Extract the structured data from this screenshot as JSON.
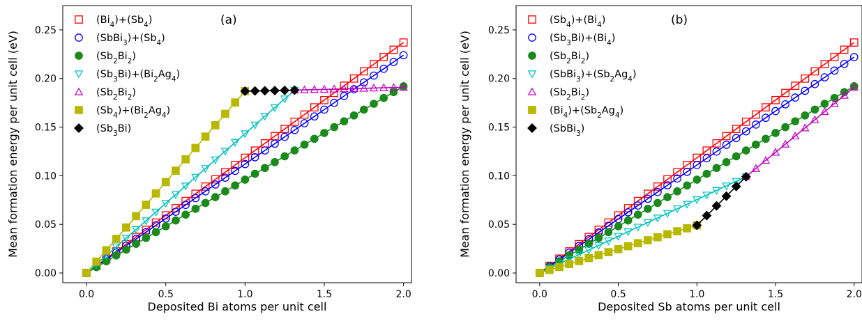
{
  "chart_data": [
    {
      "type": "line",
      "panel_label": "(a)",
      "xlabel": "Deposited Bi atoms per unit cell",
      "ylabel": "Mean formation energy per unit cell (eV)",
      "xlim": [
        -0.15,
        2.05
      ],
      "ylim": [
        -0.01,
        0.275
      ],
      "xticks": [
        "0.0",
        "0.5",
        "1.0",
        "1.5",
        "2.0"
      ],
      "yticks": [
        "0.00",
        "0.05",
        "0.10",
        "0.15",
        "0.20",
        "0.25"
      ],
      "grid": false,
      "legend_position": "top-left",
      "series": [
        {
          "name": "(Bi<sub>4</sub>)+(Sb<sub>4</sub>)",
          "marker": "square-open",
          "color": "#ff0000",
          "line_color": "#ff0000",
          "x_start": 0.0,
          "x_end": 2.0,
          "step": 0.0625,
          "y_start": 0.0,
          "y_end": 0.237
        },
        {
          "name": "(SbBi<sub>3</sub>)+(Sb<sub>4</sub>)",
          "marker": "circle-open",
          "color": "#0000ff",
          "line_color": "#0000ff",
          "x_start": 0.0,
          "x_end": 2.0,
          "step": 0.0625,
          "y_start": 0.0,
          "y_end": 0.224
        },
        {
          "name": "(Sb<sub>2</sub>Bi<sub>2</sub>)",
          "marker": "circle-filled",
          "color": "#1a8a1a",
          "line_color": "#1a8a1a",
          "x_start": 0.0,
          "x_end": 2.0,
          "step": 0.0625,
          "y_start": 0.0,
          "y_end": 0.192
        },
        {
          "name": "(Sb<sub>3</sub>Bi)+(Bi<sub>2</sub>Ag<sub>4</sub>)",
          "marker": "triangle-down-open",
          "color": "#00c0c0",
          "line_color": "#00c0c0",
          "x_start": 0.0,
          "x_end": 1.3125,
          "step": 0.0625,
          "y_start": 0.0,
          "y_end": 0.188
        },
        {
          "name": "(Sb<sub>2</sub>Bi<sub>2</sub>)",
          "marker": "triangle-up-open",
          "color": "#c000c0",
          "line_color": "#c000c0",
          "x_start": 1.3125,
          "x_end": 2.0,
          "step": 0.0625,
          "y_start": 0.188,
          "y_end": 0.191
        },
        {
          "name": "(Sb<sub>4</sub>)+(Bi<sub>2</sub>Ag<sub>4</sub>)",
          "marker": "square-filled",
          "color": "#b8b800",
          "line_color": "#b8b800",
          "x_start": 0.0,
          "x_end": 1.0,
          "step": 0.0625,
          "y_start": 0.0,
          "y_end": 0.187
        },
        {
          "name": "(Sb<sub>3</sub>Bi)",
          "marker": "diamond-filled",
          "color": "#000000",
          "line_color": "#000000",
          "x_start": 1.0,
          "x_end": 1.3125,
          "step": 0.0625,
          "y_start": 0.187,
          "y_end": 0.188
        }
      ]
    },
    {
      "type": "line",
      "panel_label": "(b)",
      "xlabel": "Deposited Sb atoms per unit cell",
      "ylabel": "Mean formation energy per unit cell (eV)",
      "xlim": [
        -0.15,
        2.05
      ],
      "ylim": [
        -0.01,
        0.275
      ],
      "xticks": [
        "0.0",
        "0.5",
        "1.0",
        "1.5",
        "2.0"
      ],
      "yticks": [
        "0.00",
        "0.05",
        "0.10",
        "0.15",
        "0.20",
        "0.25"
      ],
      "grid": false,
      "legend_position": "top-left",
      "series": [
        {
          "name": "(Sb<sub>4</sub>)+(Bi<sub>4</sub>)",
          "marker": "square-open",
          "color": "#ff0000",
          "line_color": "#ff0000",
          "x_start": 0.0,
          "x_end": 2.0,
          "step": 0.0625,
          "y_start": 0.0,
          "y_end": 0.237
        },
        {
          "name": "(Sb<sub>3</sub>Bi)+(Bi<sub>4</sub>)",
          "marker": "circle-open",
          "color": "#0000ff",
          "line_color": "#0000ff",
          "x_start": 0.0,
          "x_end": 2.0,
          "step": 0.0625,
          "y_start": 0.0,
          "y_end": 0.222
        },
        {
          "name": "(Sb<sub>2</sub>Bi<sub>2</sub>)",
          "marker": "circle-filled",
          "color": "#1a8a1a",
          "line_color": "#1a8a1a",
          "x_start": 0.0,
          "x_end": 2.0,
          "step": 0.0625,
          "y_start": 0.0,
          "y_end": 0.192
        },
        {
          "name": "(SbBi<sub>3</sub>)+(Sb<sub>2</sub>Ag<sub>4</sub>)",
          "marker": "triangle-down-open",
          "color": "#00c0c0",
          "line_color": "#00c0c0",
          "x_start": 0.0,
          "x_end": 1.3125,
          "step": 0.0625,
          "y_start": 0.0,
          "y_end": 0.099
        },
        {
          "name": "(Sb<sub>2</sub>Bi<sub>2</sub>)",
          "marker": "triangle-up-open",
          "color": "#c000c0",
          "line_color": "#c000c0",
          "x_start": 1.3125,
          "x_end": 2.0,
          "step": 0.0625,
          "y_start": 0.099,
          "y_end": 0.191
        },
        {
          "name": "(Bi<sub>4</sub>)+(Sb<sub>2</sub>Ag<sub>4</sub>)",
          "marker": "square-filled",
          "color": "#b8b800",
          "line_color": "#b8b800",
          "x_start": 0.0,
          "x_end": 1.0,
          "step": 0.0625,
          "y_start": 0.0,
          "y_end": 0.049
        },
        {
          "name": "(SbBi<sub>3</sub>)",
          "marker": "diamond-filled",
          "color": "#000000",
          "line_color": "#000000",
          "x_start": 1.0,
          "x_end": 1.3125,
          "step": 0.0625,
          "y_start": 0.049,
          "y_end": 0.099
        }
      ]
    }
  ]
}
